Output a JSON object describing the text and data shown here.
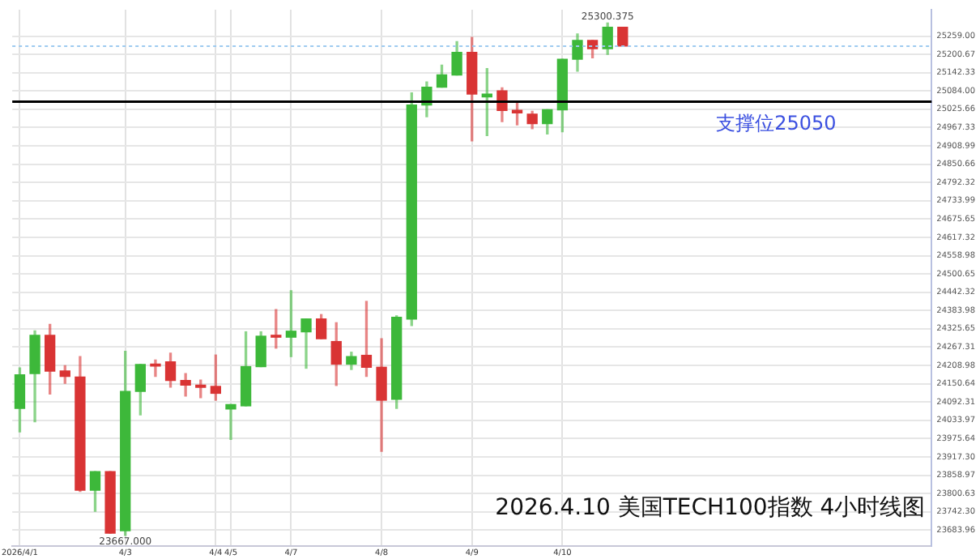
{
  "chart_data": {
    "type": "candlestick",
    "categories": [
      "2026/4/1",
      null,
      null,
      null,
      null,
      null,
      null,
      "4/3",
      null,
      null,
      null,
      null,
      null,
      "4/4",
      "4/5",
      null,
      null,
      null,
      "4/7",
      null,
      null,
      null,
      null,
      null,
      "4/8",
      null,
      null,
      null,
      null,
      null,
      "4/9",
      null,
      null,
      null,
      null,
      null,
      "4/10",
      null,
      null,
      null,
      null,
      null,
      null,
      null,
      null,
      null,
      null,
      null,
      null,
      null,
      null,
      null,
      null,
      null,
      null,
      null,
      null,
      null,
      null,
      null,
      null
    ],
    "ohlc": [
      [
        24072,
        24201,
        23997,
        24179
      ],
      [
        24183,
        24319,
        24029,
        24305
      ],
      [
        24305,
        24340,
        24118,
        24191
      ],
      [
        24191,
        24208,
        24152,
        24174
      ],
      [
        24172,
        24237,
        23807,
        23811
      ],
      [
        23811,
        23870,
        23744,
        23870
      ],
      [
        23870,
        23870,
        23674,
        23674
      ],
      [
        23682,
        24254,
        23667,
        24126
      ],
      [
        24126,
        24212,
        24051,
        24212
      ],
      [
        24213,
        24226,
        24174,
        24207
      ],
      [
        24220,
        24248,
        24140,
        24161
      ],
      [
        24161,
        24183,
        24111,
        24146
      ],
      [
        24146,
        24162,
        24106,
        24139
      ],
      [
        24142,
        24242,
        24098,
        24120
      ],
      [
        24070,
        24084,
        23973,
        24084
      ],
      [
        24080,
        24316,
        24080,
        24205
      ],
      [
        24205,
        24316,
        24205,
        24302
      ],
      [
        24305,
        24387,
        24264,
        24299
      ],
      [
        24299,
        24447,
        24237,
        24318
      ],
      [
        24316,
        24357,
        24200,
        24357
      ],
      [
        24357,
        24371,
        24294,
        24294
      ],
      [
        24285,
        24345,
        24145,
        24213
      ],
      [
        24213,
        24251,
        24196,
        24237
      ],
      [
        24241,
        24413,
        24174,
        24203
      ],
      [
        24203,
        24294,
        23935,
        24098
      ],
      [
        24101,
        24367,
        24072,
        24362
      ],
      [
        24357,
        25078,
        24336,
        25039
      ],
      [
        25039,
        25113,
        25002,
        25096
      ],
      [
        25096,
        25166,
        25096,
        25135
      ],
      [
        25135,
        25241,
        25135,
        25207
      ],
      [
        25207,
        25255,
        24925,
        25074
      ],
      [
        25065,
        25155,
        24942,
        25074
      ],
      [
        25084,
        25094,
        24986,
        25022
      ],
      [
        25022,
        25045,
        24976,
        25014
      ],
      [
        25010,
        25019,
        24964,
        24980
      ],
      [
        24980,
        25024,
        24947,
        25024
      ],
      [
        25024,
        25185,
        24954,
        25185
      ],
      [
        25185,
        25266,
        25147,
        25245
      ],
      [
        25245,
        25245,
        25190,
        25219
      ],
      [
        25219,
        25300.375,
        25201,
        25287
      ],
      [
        25287,
        25287,
        25227,
        25227
      ],
      null,
      null,
      null,
      null,
      null,
      null,
      null,
      null,
      null,
      null,
      null,
      null,
      null,
      null,
      null,
      null,
      null,
      null,
      null,
      null
    ],
    "ylim": [
      23633,
      25343
    ],
    "yticks": [
      {
        "value": 25259,
        "label": "25259.00"
      },
      {
        "value": 25200.67,
        "label": "25200.67"
      },
      {
        "value": 25142.33,
        "label": "25142.33"
      },
      {
        "value": 25084,
        "label": "25084.00"
      },
      {
        "value": 25025.66,
        "label": "25025.66"
      },
      {
        "value": 24967.33,
        "label": "24967.33"
      },
      {
        "value": 24908.99,
        "label": "24908.99"
      },
      {
        "value": 24850.66,
        "label": "24850.66"
      },
      {
        "value": 24792.32,
        "label": "24792.32"
      },
      {
        "value": 24733.99,
        "label": "24733.99"
      },
      {
        "value": 24675.65,
        "label": "24675.65"
      },
      {
        "value": 24617.32,
        "label": "24617.32"
      },
      {
        "value": 24558.98,
        "label": "24558.98"
      },
      {
        "value": 24500.65,
        "label": "24500.65"
      },
      {
        "value": 24442.32,
        "label": "24442.32"
      },
      {
        "value": 24383.98,
        "label": "24383.98"
      },
      {
        "value": 24325.65,
        "label": "24325.65"
      },
      {
        "value": 24267.31,
        "label": "24267.31"
      },
      {
        "value": 24208.98,
        "label": "24208.98"
      },
      {
        "value": 24150.64,
        "label": "24150.64"
      },
      {
        "value": 24092.31,
        "label": "24092.31"
      },
      {
        "value": 24033.97,
        "label": "24033.97"
      },
      {
        "value": 23975.64,
        "label": "23975.64"
      },
      {
        "value": 23917.3,
        "label": "23917.30"
      },
      {
        "value": 23858.97,
        "label": "23858.97"
      },
      {
        "value": 23800.63,
        "label": "23800.63"
      },
      {
        "value": 23742.3,
        "label": "23742.30"
      },
      {
        "value": 23683.96,
        "label": "23683.96"
      }
    ],
    "grid": true,
    "ref_lines": [
      {
        "axis": "y",
        "value": 25050,
        "label": "支撑位25050",
        "color": "#000000",
        "line_style": "solid"
      },
      {
        "axis": "y",
        "value": 25227,
        "color": "#9ecbf0",
        "line_style": "dotted"
      }
    ],
    "annotations": [
      "2026.4.10 美国TECH100指数 4小时线图",
      {
        "text": "23667.000",
        "x": "4/3",
        "y": 23667
      },
      {
        "text": "25300.375",
        "y": 25300.375
      }
    ]
  }
}
